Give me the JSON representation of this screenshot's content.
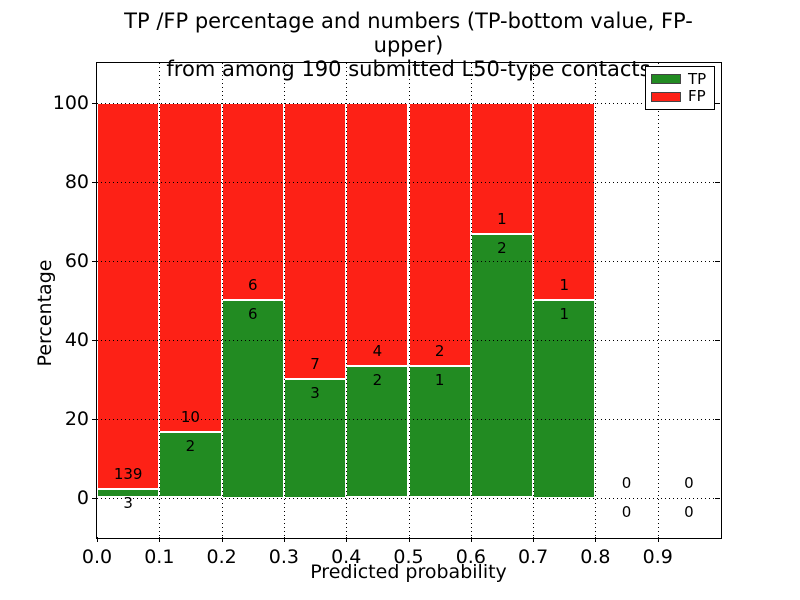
{
  "chart_data": {
    "type": "bar",
    "variant": "stacked-percentage",
    "title": "TP /FP percentage and numbers (TP-bottom value, FP-upper)\nfrom among 190 submitted L50-type contacts",
    "title_lines": [
      "TP /FP percentage and numbers (TP-bottom value, FP-upper)",
      "from among 190 submitted L50-type contacts"
    ],
    "xlabel": "Predicted probability",
    "ylabel": "Percentage",
    "xlim": [
      0.0,
      1.0
    ],
    "ylim": [
      -10,
      110
    ],
    "grid": true,
    "grid_style": "dotted",
    "xtick_values": [
      0.0,
      0.1,
      0.2,
      0.3,
      0.4,
      0.5,
      0.6,
      0.7,
      0.8,
      0.9
    ],
    "xtick_labels": [
      "0.0",
      "0.1",
      "0.2",
      "0.3",
      "0.4",
      "0.5",
      "0.6",
      "0.7",
      "0.8",
      "0.9"
    ],
    "ytick_values": [
      0,
      20,
      40,
      60,
      80,
      100
    ],
    "ytick_labels": [
      "0",
      "20",
      "40",
      "60",
      "80",
      "100"
    ],
    "legend": {
      "position": "upper-right",
      "entries": [
        {
          "label": "TP",
          "color": "#228b22"
        },
        {
          "label": "FP",
          "color": "#fd2116"
        }
      ]
    },
    "bar_edge_color": "#ffffff",
    "total_contacts": 190,
    "label_note": "FP count printed above TP/FP boundary, TP count printed below it",
    "bins": [
      {
        "range": [
          0.0,
          0.1
        ],
        "tp": 3,
        "fp": 139,
        "tp_pct": 2.11
      },
      {
        "range": [
          0.1,
          0.2
        ],
        "tp": 2,
        "fp": 10,
        "tp_pct": 16.67
      },
      {
        "range": [
          0.2,
          0.3
        ],
        "tp": 6,
        "fp": 6,
        "tp_pct": 50.0
      },
      {
        "range": [
          0.3,
          0.4
        ],
        "tp": 3,
        "fp": 7,
        "tp_pct": 30.0
      },
      {
        "range": [
          0.4,
          0.5
        ],
        "tp": 2,
        "fp": 4,
        "tp_pct": 33.33
      },
      {
        "range": [
          0.5,
          0.6
        ],
        "tp": 1,
        "fp": 2,
        "tp_pct": 33.33
      },
      {
        "range": [
          0.6,
          0.7
        ],
        "tp": 2,
        "fp": 1,
        "tp_pct": 66.67
      },
      {
        "range": [
          0.7,
          0.8
        ],
        "tp": 1,
        "fp": 1,
        "tp_pct": 50.0
      },
      {
        "range": [
          0.8,
          0.9
        ],
        "tp": 0,
        "fp": 0,
        "tp_pct": null
      },
      {
        "range": [
          0.9,
          1.0
        ],
        "tp": 0,
        "fp": 0,
        "tp_pct": null
      }
    ]
  }
}
